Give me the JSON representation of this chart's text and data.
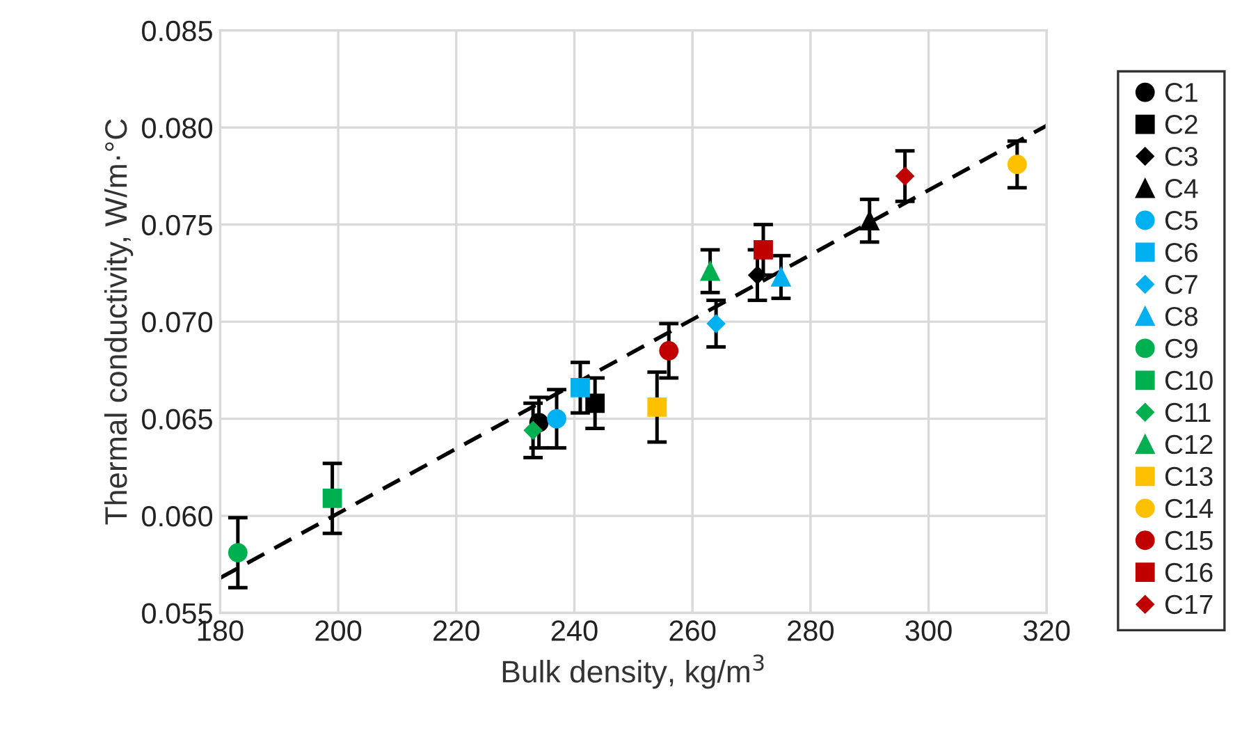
{
  "chart_data": {
    "type": "scatter",
    "xlabel": "Bulk density, kg/m$^{3}$",
    "ylabel": "Thermal conductivity, W/m·°C",
    "xlim": [
      180,
      320
    ],
    "xticks": [
      180,
      200,
      220,
      240,
      260,
      280,
      300,
      320
    ],
    "ylim": [
      0.055,
      0.085
    ],
    "yticks": [
      0.055,
      {
        "value": 0.06,
        "label": "0.060"
      },
      0.065,
      {
        "value": 0.07,
        "label": "0.070"
      },
      0.075,
      {
        "value": 0.08,
        "label": "0.080"
      },
      0.085
    ],
    "grid": true,
    "legend": "right",
    "series": [
      {
        "name": "C1",
        "color": "#000000",
        "marker": "circle",
        "x": [
          234
        ],
        "values": [
          0.0648
        ],
        "errors": [
          0.0013
        ]
      },
      {
        "name": "C2",
        "color": "#000000",
        "marker": "square",
        "x": [
          243.5
        ],
        "values": [
          0.0658
        ],
        "errors": [
          0.0013
        ]
      },
      {
        "name": "C3",
        "color": "#000000",
        "marker": "diamond",
        "x": [
          271
        ],
        "values": [
          0.0724
        ],
        "errors": [
          0.0013
        ]
      },
      {
        "name": "C4",
        "color": "#000000",
        "marker": "triangle",
        "x": [
          290
        ],
        "values": [
          0.0752
        ],
        "errors": [
          0.0011
        ]
      },
      {
        "name": "C5",
        "color": "#00b0f0",
        "marker": "circle",
        "x": [
          237
        ],
        "values": [
          0.065
        ],
        "errors": [
          0.0015
        ]
      },
      {
        "name": "C6",
        "color": "#00b0f0",
        "marker": "square",
        "x": [
          241
        ],
        "values": [
          0.0666
        ],
        "errors": [
          0.0013
        ]
      },
      {
        "name": "C7",
        "color": "#00b0f0",
        "marker": "diamond",
        "x": [
          264
        ],
        "values": [
          0.0699
        ],
        "errors": [
          0.0012
        ]
      },
      {
        "name": "C8",
        "color": "#00b0f0",
        "marker": "triangle",
        "x": [
          275
        ],
        "values": [
          0.0723
        ],
        "errors": [
          0.0011
        ]
      },
      {
        "name": "C9",
        "color": "#00b050",
        "marker": "circle",
        "x": [
          183
        ],
        "values": [
          0.0581
        ],
        "errors": [
          0.0018
        ]
      },
      {
        "name": "C10",
        "color": "#00b050",
        "marker": "square",
        "x": [
          199
        ],
        "values": [
          0.0609
        ],
        "errors": [
          0.0018
        ]
      },
      {
        "name": "C11",
        "color": "#00b050",
        "marker": "diamond",
        "x": [
          233
        ],
        "values": [
          0.0644
        ],
        "errors": [
          0.0014
        ]
      },
      {
        "name": "C12",
        "color": "#00b050",
        "marker": "triangle",
        "x": [
          263
        ],
        "values": [
          0.0726
        ],
        "errors": [
          0.0011
        ]
      },
      {
        "name": "C13",
        "color": "#ffc000",
        "marker": "square",
        "x": [
          254
        ],
        "values": [
          0.0656
        ],
        "errors": [
          0.0018
        ]
      },
      {
        "name": "C14",
        "color": "#ffc000",
        "marker": "circle",
        "x": [
          315
        ],
        "values": [
          0.0781
        ],
        "errors": [
          0.0012
        ]
      },
      {
        "name": "C15",
        "color": "#c00000",
        "marker": "circle",
        "x": [
          256
        ],
        "values": [
          0.0685
        ],
        "errors": [
          0.0014
        ]
      },
      {
        "name": "C16",
        "color": "#c00000",
        "marker": "square",
        "x": [
          272
        ],
        "values": [
          0.0737
        ],
        "errors": [
          0.0013
        ]
      },
      {
        "name": "C17",
        "color": "#c00000",
        "marker": "diamond",
        "x": [
          296
        ],
        "values": [
          0.0775
        ],
        "errors": [
          0.0013
        ]
      },
      {
        "type": "line",
        "color": "#000000",
        "line_style": "dashed",
        "marker": "none",
        "x": [
          180,
          320
        ],
        "values": [
          0.0568,
          0.0801
        ]
      }
    ]
  }
}
